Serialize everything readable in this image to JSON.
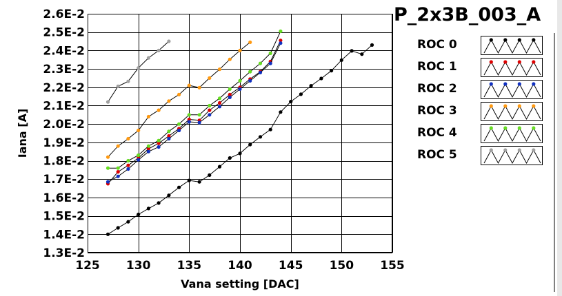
{
  "chart_data": {
    "type": "line",
    "title": "P_2x3B_003_A",
    "xlabel": "Vana setting [DAC]",
    "ylabel": "Iana [A]",
    "xlim": [
      125,
      155
    ],
    "ylim": [
      0.013,
      0.026
    ],
    "x_ticks": [
      "125",
      "130",
      "135",
      "140",
      "145",
      "150",
      "155"
    ],
    "y_ticks": [
      "1.3E-2",
      "1.4E-2",
      "1.5E-2",
      "1.6E-2",
      "1.7E-2",
      "1.8E-2",
      "1.9E-2",
      "2.0E-2",
      "2.1E-2",
      "2.2E-2",
      "2.3E-2",
      "2.4E-2",
      "2.5E-2",
      "2.6E-2"
    ],
    "grid": true,
    "legend_position": "right",
    "series": [
      {
        "name": "ROC 0",
        "color": "#000000",
        "points": [
          [
            127,
            0.014
          ],
          [
            128,
            0.01435
          ],
          [
            129,
            0.01468
          ],
          [
            130,
            0.01508
          ],
          [
            131,
            0.0154
          ],
          [
            132,
            0.0157
          ],
          [
            133,
            0.01612
          ],
          [
            134,
            0.01655
          ],
          [
            135,
            0.01693
          ],
          [
            136,
            0.01685
          ],
          [
            137,
            0.01722
          ],
          [
            138,
            0.01768
          ],
          [
            139,
            0.01815
          ],
          [
            140,
            0.0184
          ],
          [
            141,
            0.01888
          ],
          [
            142,
            0.0193
          ],
          [
            143,
            0.0197
          ],
          [
            144,
            0.02065
          ],
          [
            145,
            0.02122
          ],
          [
            146,
            0.02162
          ],
          [
            147,
            0.02208
          ],
          [
            148,
            0.02248
          ],
          [
            149,
            0.0229
          ],
          [
            150,
            0.02348
          ],
          [
            151,
            0.02398
          ],
          [
            152,
            0.0238
          ],
          [
            153,
            0.0243
          ]
        ]
      },
      {
        "name": "ROC 1",
        "color": "#dd0000",
        "points": [
          [
            127,
            0.01675
          ],
          [
            128,
            0.0174
          ],
          [
            129,
            0.01775
          ],
          [
            130,
            0.01815
          ],
          [
            131,
            0.01865
          ],
          [
            132,
            0.01895
          ],
          [
            133,
            0.01935
          ],
          [
            134,
            0.01975
          ],
          [
            135,
            0.02025
          ],
          [
            136,
            0.0202
          ],
          [
            137,
            0.02075
          ],
          [
            138,
            0.02115
          ],
          [
            139,
            0.0216
          ],
          [
            140,
            0.022
          ],
          [
            141,
            0.02245
          ],
          [
            142,
            0.02285
          ],
          [
            143,
            0.0234
          ],
          [
            144,
            0.02455
          ]
        ]
      },
      {
        "name": "ROC 2",
        "color": "#1030c0",
        "points": [
          [
            127,
            0.01685
          ],
          [
            128,
            0.01715
          ],
          [
            129,
            0.01755
          ],
          [
            130,
            0.01805
          ],
          [
            131,
            0.0185
          ],
          [
            132,
            0.01875
          ],
          [
            133,
            0.0192
          ],
          [
            134,
            0.01965
          ],
          [
            135,
            0.02012
          ],
          [
            136,
            0.02008
          ],
          [
            137,
            0.0205
          ],
          [
            138,
            0.02095
          ],
          [
            139,
            0.02145
          ],
          [
            140,
            0.0219
          ],
          [
            141,
            0.02235
          ],
          [
            142,
            0.0228
          ],
          [
            143,
            0.0233
          ],
          [
            144,
            0.0244
          ]
        ]
      },
      {
        "name": "ROC 3",
        "color": "#ff9910",
        "points": [
          [
            127,
            0.0182
          ],
          [
            128,
            0.0188
          ],
          [
            129,
            0.0192
          ],
          [
            130,
            0.01965
          ],
          [
            131,
            0.0204
          ],
          [
            132,
            0.02075
          ],
          [
            133,
            0.02125
          ],
          [
            134,
            0.0216
          ],
          [
            135,
            0.0221
          ],
          [
            136,
            0.02198
          ],
          [
            137,
            0.0225
          ],
          [
            138,
            0.02298
          ],
          [
            139,
            0.02352
          ],
          [
            140,
            0.024
          ],
          [
            141,
            0.02445
          ]
        ]
      },
      {
        "name": "ROC 4",
        "color": "#66dd22",
        "points": [
          [
            127,
            0.0176
          ],
          [
            128,
            0.0176
          ],
          [
            129,
            0.018
          ],
          [
            130,
            0.0183
          ],
          [
            131,
            0.0188
          ],
          [
            132,
            0.0191
          ],
          [
            133,
            0.0196
          ],
          [
            134,
            0.02
          ],
          [
            135,
            0.0205
          ],
          [
            136,
            0.0205
          ],
          [
            137,
            0.021
          ],
          [
            138,
            0.0214
          ],
          [
            139,
            0.0219
          ],
          [
            140,
            0.02235
          ],
          [
            141,
            0.02285
          ],
          [
            142,
            0.0233
          ],
          [
            143,
            0.02385
          ],
          [
            144,
            0.02505
          ]
        ]
      },
      {
        "name": "ROC 5",
        "color": "#a0a0a0",
        "points": [
          [
            127,
            0.0212
          ],
          [
            128,
            0.02205
          ],
          [
            129,
            0.02232
          ],
          [
            130,
            0.02305
          ],
          [
            131,
            0.0236
          ],
          [
            132,
            0.024
          ],
          [
            133,
            0.0245
          ]
        ]
      }
    ]
  }
}
